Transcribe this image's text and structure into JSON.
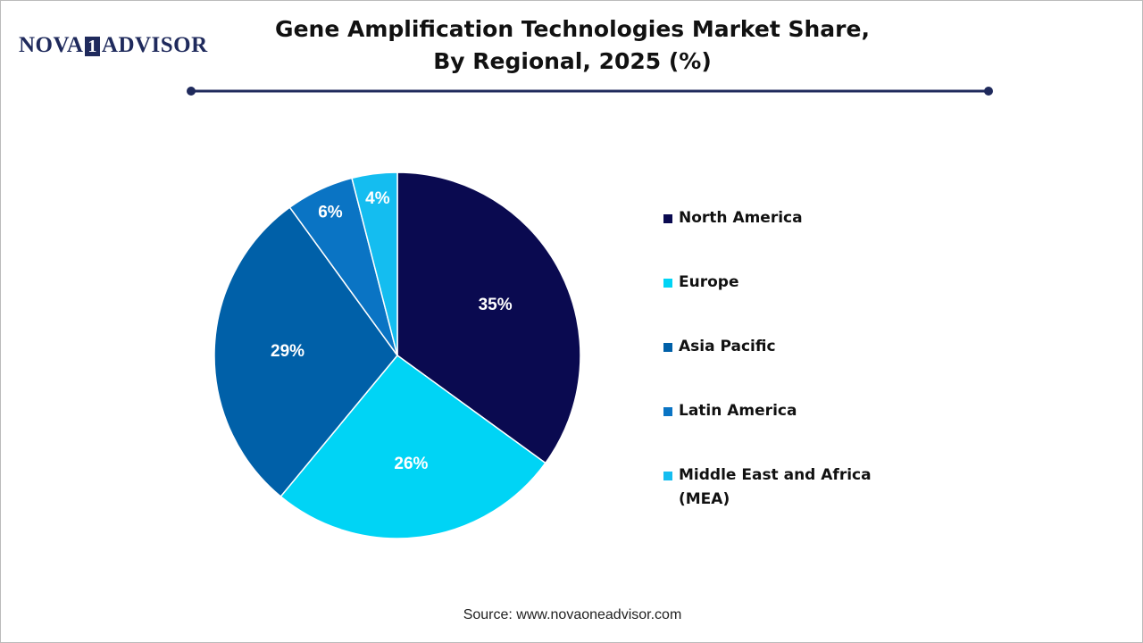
{
  "logo": {
    "left": "NOVA",
    "mark": "1",
    "right": "ADVISOR"
  },
  "chart_data": {
    "type": "pie",
    "title": "Gene Amplification Technologies Market Share, By Regional, 2025 (%)",
    "categories": [
      "North America",
      "Europe",
      "Asia Pacific",
      "Latin America",
      "Middle East and Africa (MEA)"
    ],
    "values": [
      35,
      26,
      29,
      6,
      4
    ],
    "value_labels": [
      "35%",
      "26%",
      "29%",
      "6%",
      "4%"
    ],
    "colors": [
      "#0a0a50",
      "#00d4f5",
      "#0060a8",
      "#0a74c4",
      "#14bdf0"
    ],
    "legend": "right"
  },
  "source": "Source: www.novaoneadvisor.com"
}
